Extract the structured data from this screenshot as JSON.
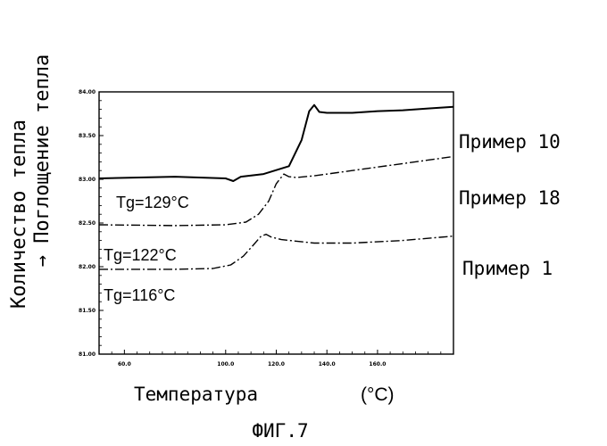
{
  "chart_data": {
    "type": "line",
    "title": "",
    "caption": "ФИГ.7",
    "ylabel_lines": [
      "Количество тепла",
      "→ Поглощение тепла"
    ],
    "xlabel": "Температура",
    "xunit": "(°C)",
    "xlim": [
      50,
      190
    ],
    "ylim": [
      81,
      84
    ],
    "x_ticks": [
      60,
      100,
      120,
      140,
      160
    ],
    "x_tick_labels": [
      "60.0",
      "100.0",
      "120.0",
      "140.0",
      "160.0"
    ],
    "y_ticks": [
      84,
      83.5,
      83,
      82.5,
      82,
      81.5,
      81
    ],
    "y_tick_labels": [
      "84.00",
      "83.50",
      "83.00",
      "82.50",
      "82.00",
      "81.50",
      "81.00"
    ],
    "series": [
      {
        "name": "Пример 10",
        "tg_label": "Tg=129°C",
        "style": "solid",
        "x": [
          50,
          80,
          100,
          103,
          106,
          115,
          125,
          130,
          133,
          135,
          137,
          140,
          150,
          160,
          170,
          180,
          190
        ],
        "y": [
          83.01,
          83.03,
          83.01,
          82.98,
          83.03,
          83.06,
          83.15,
          83.45,
          83.78,
          83.85,
          83.77,
          83.76,
          83.76,
          83.78,
          83.79,
          83.81,
          83.83
        ]
      },
      {
        "name": "Пример 18",
        "style": "dashdot",
        "tg_label": "Tg=122°C",
        "x": [
          50,
          80,
          100,
          108,
          113,
          117,
          120,
          123,
          125,
          128,
          135,
          150,
          170,
          190
        ],
        "y": [
          82.48,
          82.47,
          82.48,
          82.51,
          82.6,
          82.75,
          82.95,
          83.06,
          83.03,
          83.02,
          83.04,
          83.1,
          83.18,
          83.26
        ]
      },
      {
        "name": "Пример 1",
        "style": "dashdot",
        "tg_label": "Tg=116°C",
        "x": [
          50,
          80,
          95,
          102,
          107,
          111,
          114,
          116,
          118,
          122,
          135,
          150,
          170,
          190
        ],
        "y": [
          81.97,
          81.97,
          81.98,
          82.02,
          82.12,
          82.25,
          82.35,
          82.37,
          82.34,
          82.31,
          82.27,
          82.27,
          82.3,
          82.35
        ]
      }
    ]
  }
}
